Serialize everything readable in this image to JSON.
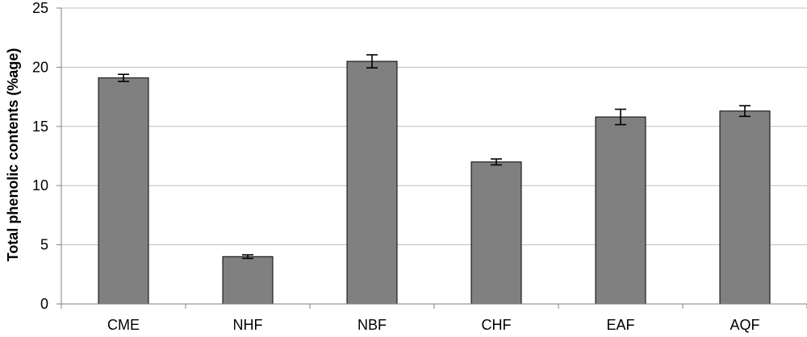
{
  "chart_data": {
    "type": "bar",
    "categories": [
      "CME",
      "NHF",
      "NBF",
      "CHF",
      "EAF",
      "AQF"
    ],
    "values": [
      19.1,
      4.0,
      20.5,
      12.0,
      15.8,
      16.3
    ],
    "errors": [
      0.3,
      0.15,
      0.55,
      0.25,
      0.65,
      0.45
    ],
    "title": "",
    "xlabel": "",
    "ylabel": "Total phenolic contents (%age)",
    "ylim": [
      0,
      25
    ],
    "yticks": [
      0,
      5,
      10,
      15,
      20,
      25
    ],
    "grid": true,
    "bar_color": "#808080"
  }
}
